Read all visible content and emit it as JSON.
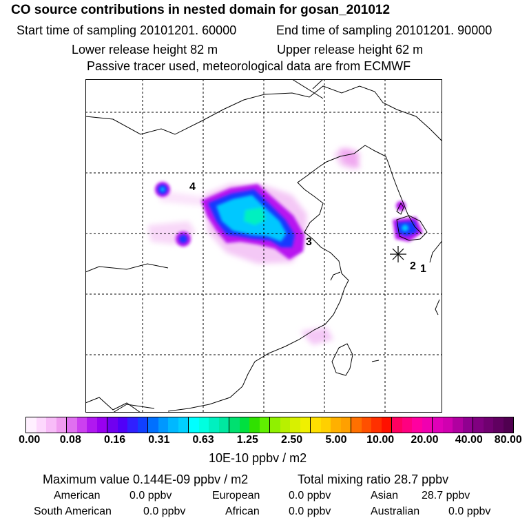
{
  "header": {
    "title": "CO  source contributions in nested domain for gosan_201012",
    "start_time": "Start time of sampling 20101201. 60000",
    "end_time": "End time of sampling 20101201. 90000",
    "lower_release": "Lower release height   82 m",
    "upper_release": "Upper release height   62 m",
    "tracer_info": "Passive tracer used, meteorological data are from ECMWF"
  },
  "map": {
    "point_labels": [
      "1",
      "2",
      "3",
      "4"
    ],
    "receptor_symbol": "star-icon"
  },
  "colorbar": {
    "tick_labels": [
      "0.00",
      "0.08",
      "0.16",
      "0.31",
      "0.63",
      "1.25",
      "2.50",
      "5.00",
      "10.00",
      "20.00",
      "40.00",
      "80.00"
    ],
    "unit": "10E-10 ppbv / m2",
    "colors": [
      "#fff0ff",
      "#fdd8fd",
      "#f8bcf8",
      "#f09cf0",
      "#e070f0",
      "#cc40f0",
      "#b018f0",
      "#9800f0",
      "#7000f0",
      "#5000f8",
      "#3020ff",
      "#1040ff",
      "#0070ff",
      "#0098ff",
      "#00b8ff",
      "#00d0ff",
      "#00ffff",
      "#00ffe0",
      "#00f0c0",
      "#00e8a0",
      "#00e070",
      "#00e040",
      "#30e000",
      "#60f000",
      "#90f000",
      "#b8f000",
      "#d8f000",
      "#f0f000",
      "#ffe000",
      "#ffd000",
      "#ffb000",
      "#ffa000",
      "#ff7000",
      "#ff5000",
      "#ff3000",
      "#ff1000",
      "#ff0060",
      "#ff0080",
      "#ff00a0",
      "#f000b0",
      "#e000b8",
      "#d000b0",
      "#b000a0",
      "#900090",
      "#800080",
      "#700070",
      "#600060",
      "#500050"
    ]
  },
  "summary": {
    "max_value": "Maximum value  0.144E-09 ppbv / m2",
    "total_mixing": "Total mixing ratio       28.7 ppbv",
    "american_label": "American",
    "american_value": "0.0 ppbv",
    "european_label": "European",
    "european_value": "0.0 ppbv",
    "asian_label": "Asian",
    "asian_value": "28.7 ppbv",
    "south_american_label": "South American",
    "south_american_value": "0.0 ppbv",
    "african_label": "African",
    "african_value": "0.0 ppbv",
    "australian_label": "Australian",
    "australian_value": "0.0 ppbv"
  }
}
